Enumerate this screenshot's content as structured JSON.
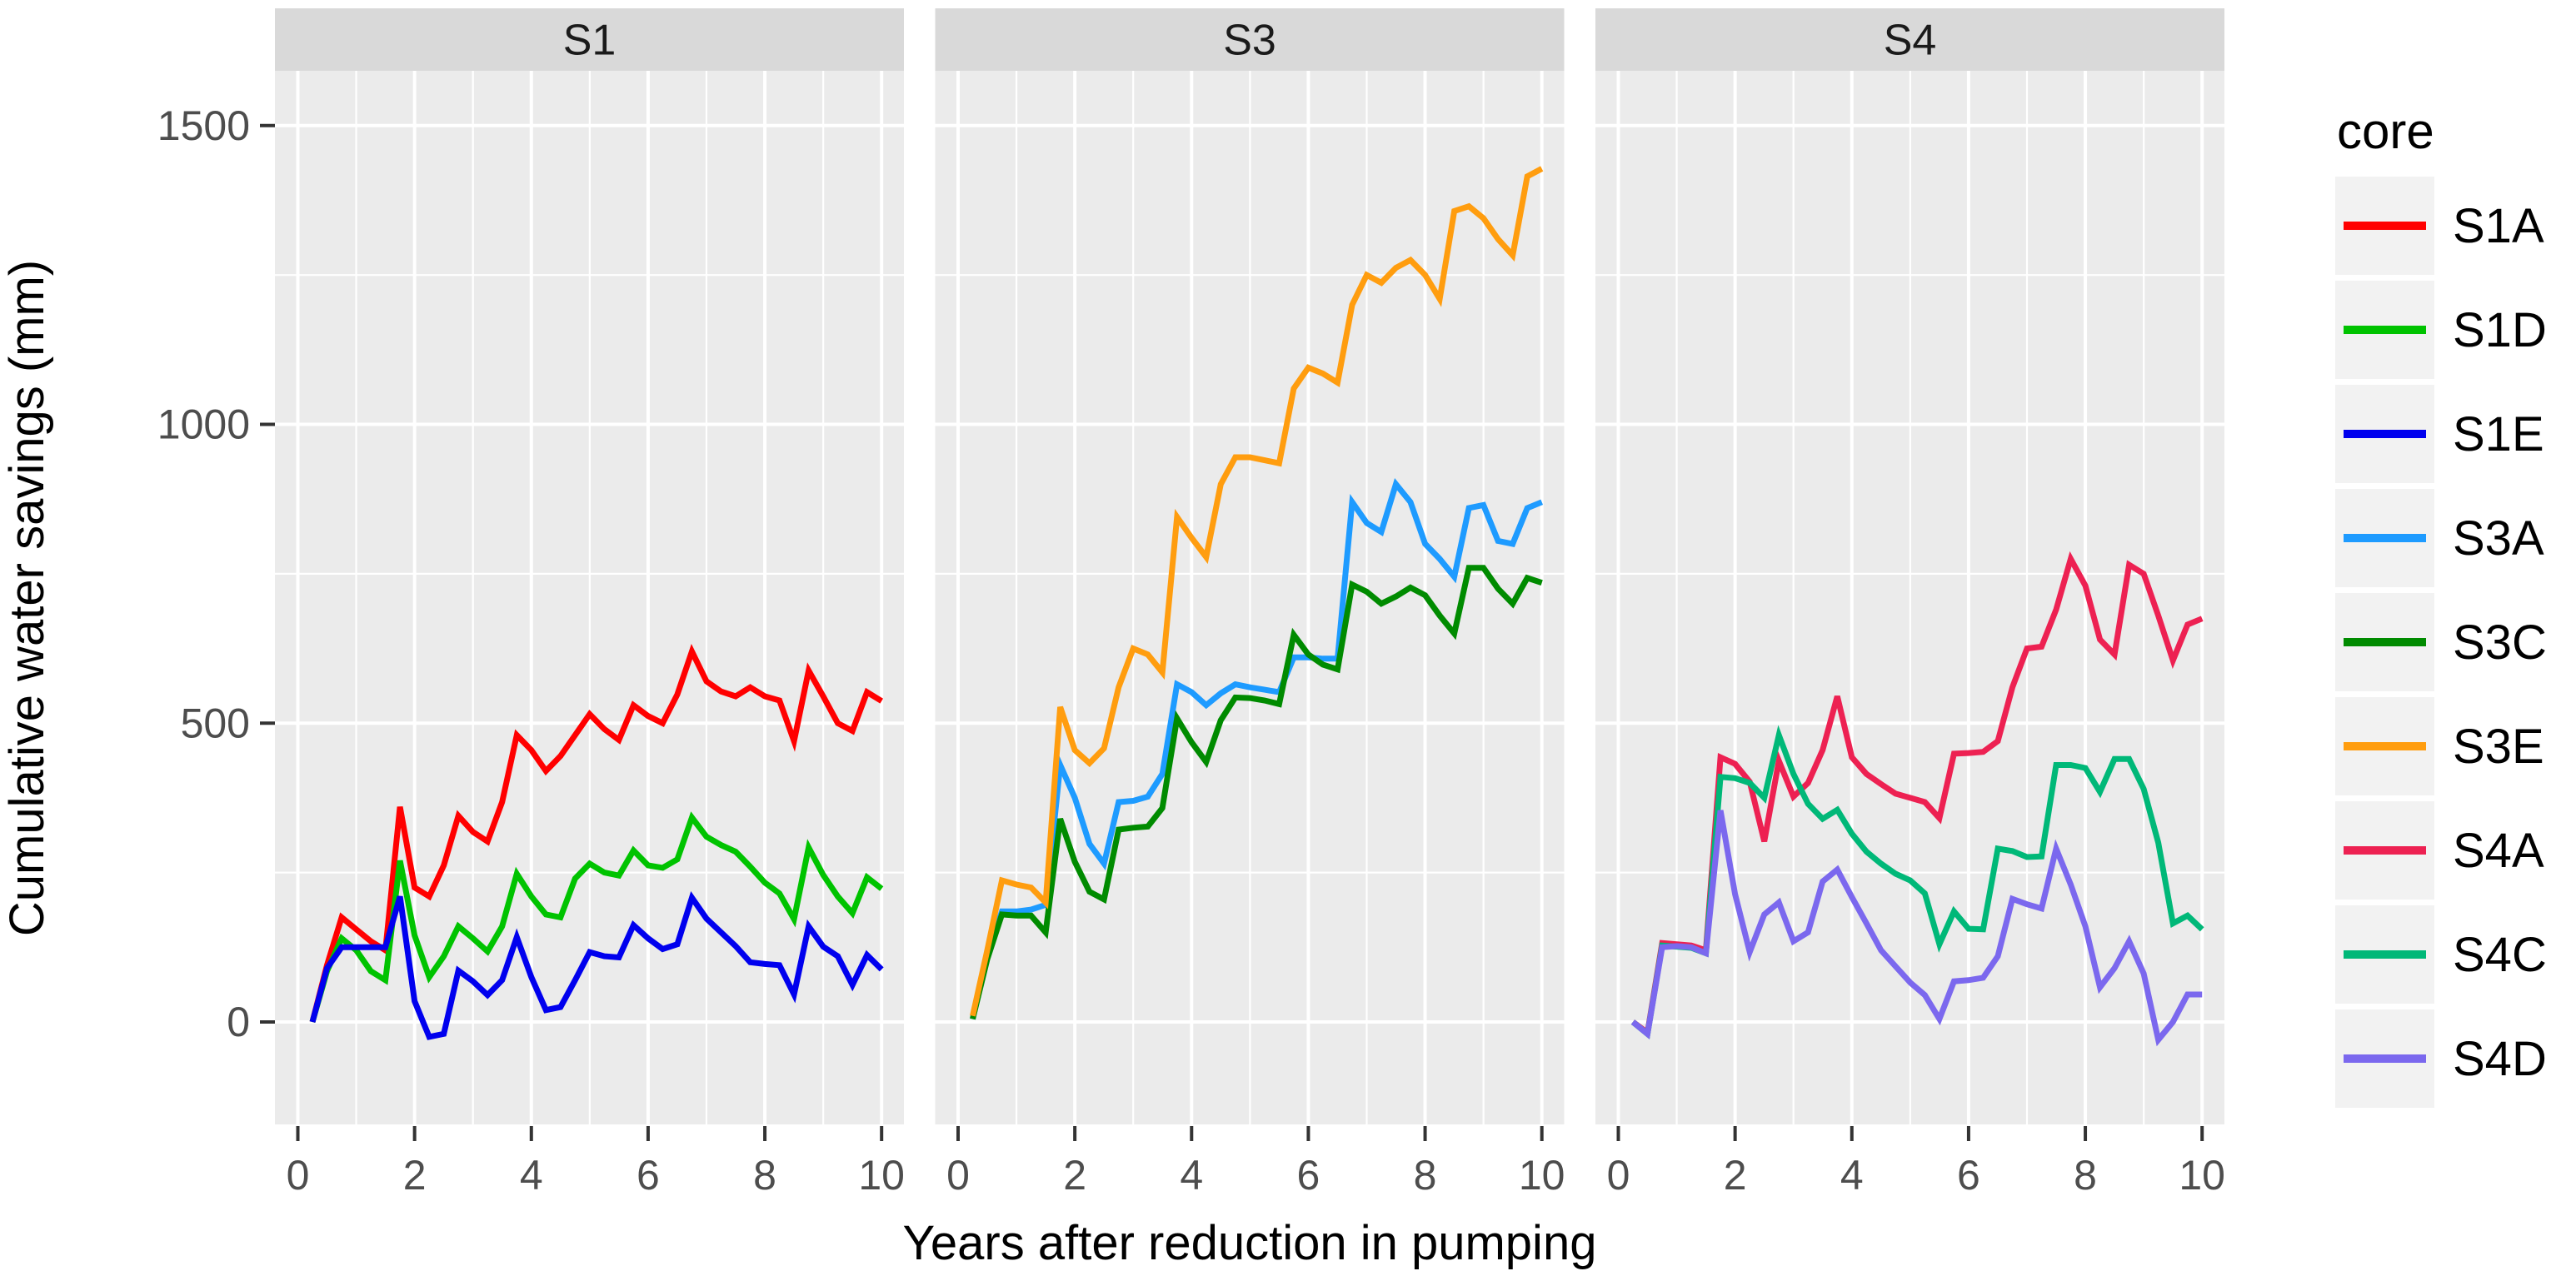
{
  "figure": {
    "y_axis": {
      "title": "Cumulative water savings (mm)",
      "ticks": [
        0,
        500,
        1000,
        1500
      ]
    },
    "x_axis": {
      "title": "Years after reduction in pumping",
      "ticks": [
        0,
        2,
        4,
        6,
        8,
        10
      ]
    },
    "strips": [
      "S1",
      "S3",
      "S4"
    ]
  },
  "legend": {
    "title": "core",
    "items": [
      {
        "label": "S1A",
        "color": "#ff0000"
      },
      {
        "label": "S1D",
        "color": "#00c300"
      },
      {
        "label": "S1E",
        "color": "#0000ee"
      },
      {
        "label": "S3A",
        "color": "#1e9bff"
      },
      {
        "label": "S3C",
        "color": "#008b00"
      },
      {
        "label": "S3E",
        "color": "#ff9d0f"
      },
      {
        "label": "S4A",
        "color": "#ed2152"
      },
      {
        "label": "S4C",
        "color": "#00b878"
      },
      {
        "label": "S4D",
        "color": "#7b68ee"
      }
    ]
  },
  "chart_data": {
    "type": "line",
    "title": "",
    "xlabel": "Years after reduction in pumping",
    "ylabel": "Cumulative water savings (mm)",
    "facet_variable_values": [
      "S1",
      "S3",
      "S4"
    ],
    "legend_title": "core",
    "legend_position": "right",
    "grid": "white major+minor on grey panels",
    "xlim": [
      -0.4,
      10.4
    ],
    "ylim": [
      -171,
      1592
    ],
    "x_ticks": [
      0,
      2,
      4,
      6,
      8,
      10
    ],
    "y_ticks": [
      0,
      500,
      1000,
      1500
    ],
    "x": [
      0.25,
      0.5,
      0.75,
      1,
      1.25,
      1.5,
      1.75,
      2,
      2.25,
      2.5,
      2.75,
      3,
      3.25,
      3.5,
      3.75,
      4,
      4.25,
      4.5,
      4.75,
      5,
      5.25,
      5.5,
      5.75,
      6,
      6.25,
      6.5,
      6.75,
      7,
      7.25,
      7.5,
      7.75,
      8,
      8.25,
      8.5,
      8.75,
      9,
      9.25,
      9.5,
      9.75,
      10
    ],
    "series": [
      {
        "name": "S1A",
        "facet": "S1",
        "color": "#ff0000",
        "values": [
          0,
          95,
          175,
          155,
          135,
          120,
          360,
          225,
          210,
          262,
          345,
          318,
          302,
          368,
          480,
          455,
          420,
          445,
          480,
          515,
          490,
          472,
          530,
          512,
          500,
          548,
          620,
          570,
          553,
          545,
          560,
          545,
          538,
          470,
          588,
          545,
          500,
          487,
          552,
          537
        ]
      },
      {
        "name": "S1D",
        "facet": "S1",
        "color": "#00c300",
        "values": [
          0,
          85,
          140,
          120,
          85,
          70,
          270,
          145,
          75,
          110,
          160,
          140,
          118,
          160,
          248,
          210,
          180,
          175,
          240,
          265,
          250,
          245,
          287,
          262,
          258,
          272,
          342,
          310,
          296,
          285,
          260,
          233,
          215,
          172,
          292,
          246,
          210,
          182,
          242,
          223
        ]
      },
      {
        "name": "S1E",
        "facet": "S1",
        "color": "#0000ee",
        "values": [
          0,
          90,
          125,
          125,
          125,
          125,
          210,
          35,
          -25,
          -20,
          86,
          68,
          45,
          70,
          142,
          75,
          20,
          25,
          70,
          117,
          110,
          108,
          162,
          140,
          122,
          130,
          208,
          173,
          150,
          127,
          100,
          97,
          95,
          46,
          160,
          126,
          110,
          62,
          112,
          88
        ]
      },
      {
        "name": "S3A",
        "facet": "S3",
        "color": "#1e9bff",
        "values": [
          5,
          110,
          185,
          185,
          188,
          196,
          430,
          375,
          298,
          265,
          368,
          370,
          377,
          415,
          565,
          552,
          530,
          550,
          565,
          560,
          556,
          552,
          610,
          610,
          608,
          608,
          870,
          835,
          820,
          900,
          870,
          800,
          775,
          745,
          860,
          865,
          805,
          800,
          860,
          870
        ]
      },
      {
        "name": "S3C",
        "facet": "S3",
        "color": "#008b00",
        "values": [
          5,
          105,
          180,
          178,
          178,
          150,
          340,
          268,
          218,
          205,
          322,
          325,
          327,
          358,
          508,
          468,
          435,
          505,
          543,
          542,
          538,
          532,
          648,
          615,
          598,
          590,
          732,
          720,
          700,
          712,
          727,
          714,
          680,
          650,
          760,
          760,
          725,
          700,
          743,
          735
        ]
      },
      {
        "name": "S3E",
        "facet": "S3",
        "color": "#ff9d0f",
        "values": [
          10,
          120,
          237,
          230,
          225,
          200,
          527,
          455,
          433,
          458,
          560,
          625,
          615,
          585,
          845,
          810,
          778,
          900,
          945,
          945,
          940,
          935,
          1060,
          1095,
          1085,
          1070,
          1200,
          1250,
          1237,
          1262,
          1275,
          1250,
          1210,
          1357,
          1365,
          1345,
          1310,
          1283,
          1415,
          1428
        ]
      },
      {
        "name": "S4A",
        "facet": "S4",
        "color": "#ed2152",
        "values": [
          0,
          -18,
          132,
          130,
          128,
          120,
          443,
          432,
          402,
          302,
          437,
          377,
          400,
          455,
          545,
          443,
          415,
          398,
          382,
          375,
          368,
          341,
          449,
          450,
          452,
          470,
          560,
          625,
          628,
          690,
          775,
          730,
          640,
          615,
          765,
          750,
          680,
          605,
          665,
          675
        ]
      },
      {
        "name": "S4C",
        "facet": "S4",
        "color": "#00b878",
        "values": [
          0,
          -20,
          128,
          126,
          124,
          115,
          410,
          408,
          400,
          375,
          480,
          415,
          365,
          340,
          355,
          315,
          285,
          265,
          248,
          237,
          215,
          130,
          185,
          156,
          155,
          290,
          286,
          276,
          277,
          430,
          430,
          425,
          385,
          440,
          440,
          390,
          300,
          165,
          178,
          155
        ]
      },
      {
        "name": "S4D",
        "facet": "S4",
        "color": "#7b68ee",
        "values": [
          0,
          -20,
          125,
          127,
          125,
          115,
          354,
          214,
          117,
          180,
          200,
          135,
          150,
          235,
          255,
          209,
          165,
          120,
          93,
          66,
          45,
          5,
          68,
          70,
          74,
          110,
          206,
          197,
          190,
          290,
          230,
          160,
          58,
          90,
          135,
          81,
          -30,
          0,
          46,
          46
        ]
      }
    ]
  },
  "theme": {
    "panel_bg": "#ebebeb",
    "strip_bg": "#d9d9d9",
    "grid_color": "#ffffff",
    "key_bg": "#f2f2f2",
    "tick_color": "#333333",
    "tick_label_color": "#4d4d4d"
  }
}
